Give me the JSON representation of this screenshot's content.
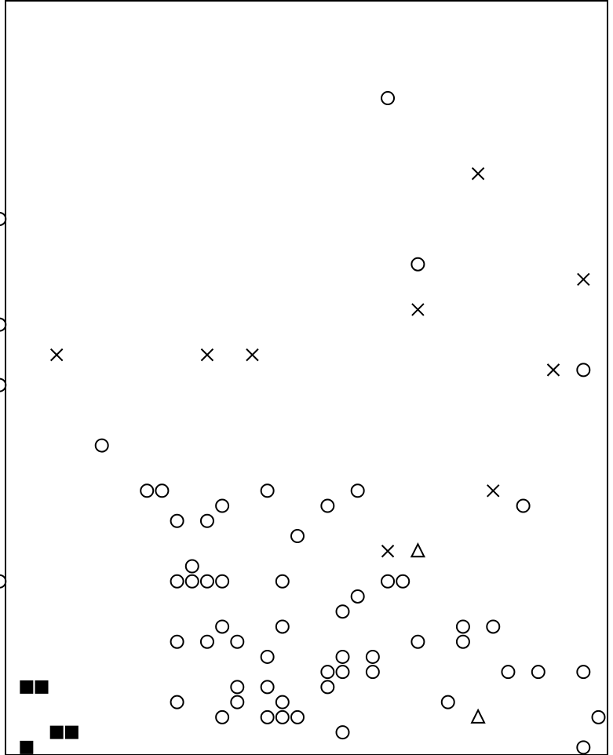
{
  "chart_data": {
    "type": "scatter",
    "title": "",
    "xlabel": "",
    "ylabel": "",
    "xlim": [
      0,
      40
    ],
    "ylim": [
      0,
      50
    ],
    "grid": false,
    "legend": "none",
    "series": [
      {
        "marker": "circle",
        "points": [
          [
            -0.4,
            35.5
          ],
          [
            -0.4,
            28.5
          ],
          [
            -0.4,
            24.5
          ],
          [
            -0.4,
            11.5
          ],
          [
            25.4,
            43.5
          ],
          [
            27.4,
            32.5
          ],
          [
            38.4,
            25.5
          ],
          [
            6.4,
            20.5
          ],
          [
            9.4,
            17.5
          ],
          [
            10.4,
            17.5
          ],
          [
            14.4,
            16.5
          ],
          [
            17.4,
            17.5
          ],
          [
            21.4,
            16.5
          ],
          [
            23.4,
            17.5
          ],
          [
            34.4,
            16.5
          ],
          [
            11.4,
            15.5
          ],
          [
            13.4,
            15.5
          ],
          [
            19.4,
            14.5
          ],
          [
            12.4,
            12.5
          ],
          [
            11.4,
            11.5
          ],
          [
            12.4,
            11.5
          ],
          [
            13.4,
            11.5
          ],
          [
            14.4,
            11.5
          ],
          [
            18.4,
            11.5
          ],
          [
            25.4,
            11.5
          ],
          [
            26.4,
            11.5
          ],
          [
            23.4,
            10.5
          ],
          [
            22.4,
            9.5
          ],
          [
            14.4,
            8.5
          ],
          [
            18.4,
            8.5
          ],
          [
            30.4,
            8.5
          ],
          [
            32.4,
            8.5
          ],
          [
            11.4,
            7.5
          ],
          [
            13.4,
            7.5
          ],
          [
            15.4,
            7.5
          ],
          [
            27.4,
            7.5
          ],
          [
            30.4,
            7.5
          ],
          [
            17.4,
            6.5
          ],
          [
            22.4,
            6.5
          ],
          [
            24.4,
            6.5
          ],
          [
            21.4,
            5.5
          ],
          [
            22.4,
            5.5
          ],
          [
            24.4,
            5.5
          ],
          [
            33.4,
            5.5
          ],
          [
            35.4,
            5.5
          ],
          [
            38.4,
            5.5
          ],
          [
            15.4,
            4.5
          ],
          [
            17.4,
            4.5
          ],
          [
            21.4,
            4.5
          ],
          [
            11.4,
            3.5
          ],
          [
            15.4,
            3.5
          ],
          [
            18.4,
            3.5
          ],
          [
            29.4,
            3.5
          ],
          [
            14.4,
            2.5
          ],
          [
            17.4,
            2.5
          ],
          [
            18.4,
            2.5
          ],
          [
            19.4,
            2.5
          ],
          [
            39.4,
            2.5
          ],
          [
            22.4,
            1.5
          ],
          [
            38.4,
            0.5
          ]
        ]
      },
      {
        "marker": "cross",
        "points": [
          [
            31.4,
            38.5
          ],
          [
            38.4,
            31.5
          ],
          [
            27.4,
            29.5
          ],
          [
            3.4,
            26.5
          ],
          [
            13.4,
            26.5
          ],
          [
            16.4,
            26.5
          ],
          [
            36.4,
            25.5
          ],
          [
            32.4,
            17.5
          ],
          [
            25.4,
            13.5
          ]
        ]
      },
      {
        "marker": "triangle",
        "points": [
          [
            27.4,
            13.5
          ],
          [
            31.4,
            2.5
          ]
        ]
      },
      {
        "marker": "square",
        "points": [
          [
            1.4,
            4.5
          ],
          [
            2.4,
            4.5
          ],
          [
            3.4,
            1.5
          ],
          [
            4.4,
            1.5
          ],
          [
            1.4,
            0.5
          ]
        ]
      }
    ]
  }
}
